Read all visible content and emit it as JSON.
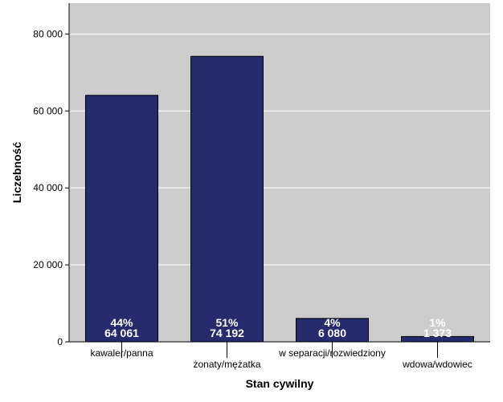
{
  "chart_data": {
    "type": "bar",
    "categories": [
      "kawaler/panna",
      "żonaty/mężatka",
      "w separacji/rozwiedziony",
      "wdowa/wdowiec"
    ],
    "values": [
      64061,
      74192,
      6080,
      1373
    ],
    "value_labels": [
      "64 061",
      "74 192",
      "6 080",
      "1 373"
    ],
    "percent_labels": [
      "44%",
      "51%",
      "4%",
      "1%"
    ],
    "xlabel": "Stan cywilny",
    "ylabel": "Liczebność",
    "ylim": [
      0,
      88000
    ],
    "yticks": [
      0,
      20000,
      40000,
      60000,
      80000
    ],
    "ytick_labels": [
      "0",
      "20 000",
      "40 000",
      "60 000",
      "80 000"
    ],
    "grid": true,
    "colors": {
      "plot_background": "#cccccc",
      "bar_fill": "#262b6e",
      "bar_stroke": "#000000",
      "gridline": "#ffffff",
      "label_text": "#ffffff"
    }
  }
}
